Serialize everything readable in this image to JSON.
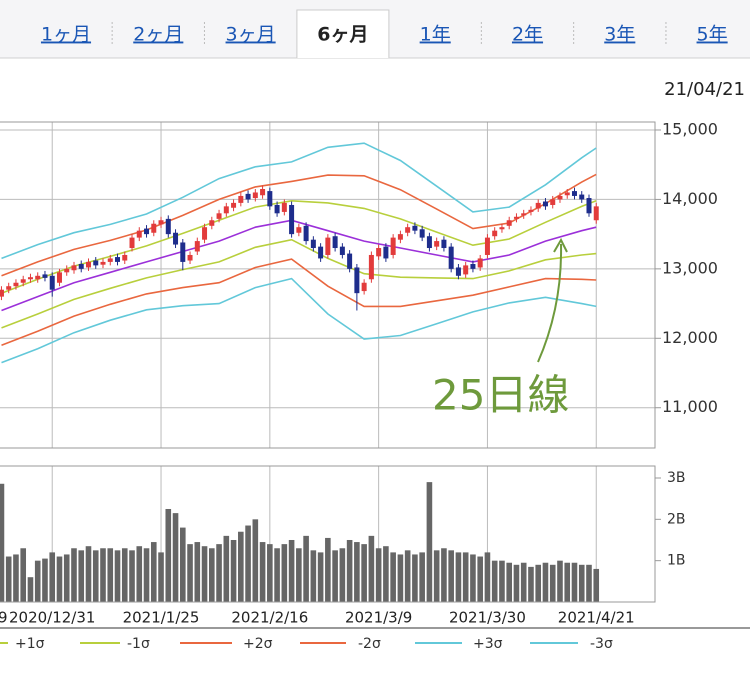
{
  "tabs": {
    "items": [
      "1ヶ月",
      "2ヶ月",
      "3ヶ月",
      "6ヶ月",
      "1年",
      "2年",
      "3年",
      "5年"
    ],
    "active": 3
  },
  "chart_data": {
    "type": "candlestick",
    "date": "21/04/21",
    "annotation": "25日線",
    "xlim": [
      -0.2,
      90.1
    ],
    "xticks": [
      {
        "value": -8,
        "label": "9"
      },
      {
        "value": 7,
        "label": "2020/12/31"
      },
      {
        "value": 22,
        "label": "2021/1/25"
      },
      {
        "value": 37,
        "label": "2021/2/16"
      },
      {
        "value": 52,
        "label": "2021/3/9"
      },
      {
        "value": 67,
        "label": "2021/3/30"
      },
      {
        "value": 82,
        "label": "2021/4/21"
      }
    ],
    "ylim": [
      10420,
      15115
    ],
    "yticks": [
      {
        "value": 11000,
        "label": "11,000"
      },
      {
        "value": 12000,
        "label": "12,000"
      },
      {
        "value": 13000,
        "label": "13,000"
      },
      {
        "value": 14000,
        "label": "14,000"
      },
      {
        "value": 15000,
        "label": "15,000"
      }
    ],
    "grid": true,
    "up_color": "#e23b3b",
    "down_color": "#1e2d8c",
    "open": [
      12600,
      12700,
      12750,
      12800,
      12850,
      12850,
      12920,
      12900,
      12800,
      12950,
      12980,
      13070,
      13020,
      13120,
      13060,
      13100,
      13170,
      13120,
      13300,
      13450,
      13580,
      13520,
      13640,
      13720,
      13520,
      13380,
      13120,
      13250,
      13420,
      13620,
      13720,
      13800,
      13880,
      13950,
      14080,
      14020,
      14060,
      14120,
      13920,
      13820,
      13920,
      13520,
      13620,
      13420,
      13320,
      13200,
      13470,
      13320,
      13220,
      13020,
      12680,
      12850,
      13180,
      13320,
      13200,
      13420,
      13520,
      13620,
      13570,
      13470,
      13320,
      13420,
      13320,
      13020,
      12920,
      13070,
      13020,
      13200,
      13470,
      13570,
      13620,
      13720,
      13770,
      13820,
      13870,
      13970,
      13920,
      14000,
      14060,
      14120,
      14070,
      14020,
      13700
    ],
    "high": [
      12750,
      12800,
      12850,
      12900,
      12930,
      12950,
      12970,
      12950,
      13000,
      13050,
      13100,
      13120,
      13150,
      13170,
      13150,
      13200,
      13220,
      13250,
      13500,
      13600,
      13630,
      13700,
      13750,
      13770,
      13570,
      13430,
      13250,
      13450,
      13650,
      13750,
      13850,
      13950,
      14000,
      14100,
      14130,
      14150,
      14200,
      14170,
      13970,
      14000,
      13970,
      13650,
      13670,
      13470,
      13370,
      13500,
      13520,
      13370,
      13270,
      13070,
      12850,
      13250,
      13350,
      13370,
      13500,
      13550,
      13650,
      13670,
      13620,
      13520,
      13450,
      13470,
      13370,
      13070,
      13100,
      13120,
      13200,
      13500,
      13600,
      13650,
      13750,
      13800,
      13850,
      13900,
      14000,
      14020,
      14050,
      14100,
      14150,
      14170,
      14120,
      14070,
      13950
    ],
    "low": [
      12550,
      12650,
      12700,
      12750,
      12800,
      12800,
      12820,
      12600,
      12750,
      12900,
      12930,
      12950,
      12970,
      13000,
      13010,
      13050,
      13050,
      13070,
      13250,
      13400,
      13450,
      13470,
      13590,
      13450,
      13300,
      12980,
      13070,
      13200,
      13370,
      13570,
      13670,
      13750,
      13830,
      13900,
      13950,
      13970,
      14010,
      13850,
      13750,
      13770,
      13450,
      13470,
      13350,
      13250,
      13100,
      13150,
      13250,
      13150,
      12950,
      12400,
      12630,
      12800,
      13130,
      13100,
      13150,
      13370,
      13470,
      13500,
      13400,
      13250,
      13270,
      13250,
      12950,
      12850,
      12870,
      12950,
      12970,
      13150,
      13420,
      13520,
      13570,
      13670,
      13720,
      13770,
      13820,
      13850,
      13870,
      13950,
      14010,
      14000,
      13950,
      13750,
      13650
    ],
    "close": [
      12700,
      12750,
      12800,
      12850,
      12880,
      12900,
      12870,
      12700,
      12950,
      13000,
      13050,
      13000,
      13100,
      13050,
      13100,
      13150,
      13100,
      13200,
      13450,
      13550,
      13500,
      13650,
      13700,
      13500,
      13350,
      13100,
      13200,
      13400,
      13600,
      13700,
      13800,
      13900,
      13950,
      14050,
      14000,
      14100,
      14150,
      13900,
      13800,
      13950,
      13500,
      13600,
      13400,
      13300,
      13150,
      13450,
      13300,
      13200,
      13000,
      12650,
      12800,
      13200,
      13300,
      13150,
      13450,
      13500,
      13600,
      13550,
      13450,
      13300,
      13400,
      13300,
      13000,
      12900,
      13050,
      13000,
      13150,
      13450,
      13550,
      13600,
      13700,
      13750,
      13800,
      13850,
      13950,
      13900,
      14000,
      14050,
      14100,
      14050,
      14000,
      13800,
      13900
    ],
    "band_x": [
      0,
      5,
      10,
      15,
      20,
      25,
      30,
      35,
      40,
      45,
      50,
      55,
      60,
      65,
      70,
      75,
      80,
      82
    ],
    "series": [
      {
        "color": "#9b30d9",
        "values": [
          12400,
          12600,
          12800,
          12950,
          13100,
          13250,
          13400,
          13600,
          13700,
          13550,
          13400,
          13300,
          13200,
          13100,
          13200,
          13400,
          13550,
          13600
        ]
      },
      {
        "name": "+1σ",
        "color": "#b8cf3c",
        "values": [
          12650,
          12850,
          13040,
          13180,
          13330,
          13510,
          13700,
          13890,
          13980,
          13950,
          13870,
          13720,
          13530,
          13340,
          13430,
          13670,
          13900,
          13980
        ]
      },
      {
        "name": "-1σ",
        "color": "#b8cf3c",
        "values": [
          12150,
          12350,
          12560,
          12720,
          12870,
          12990,
          13100,
          13310,
          13420,
          13150,
          12930,
          12880,
          12870,
          12860,
          12970,
          13130,
          13200,
          13220
        ]
      },
      {
        "name": "+2σ",
        "color": "#e9673f",
        "values": [
          12900,
          13100,
          13280,
          13410,
          13560,
          13770,
          14000,
          14180,
          14260,
          14350,
          14340,
          14140,
          13860,
          13580,
          13660,
          13940,
          14250,
          14360
        ]
      },
      {
        "name": "-2σ",
        "color": "#e9673f",
        "values": [
          11900,
          12100,
          12320,
          12490,
          12640,
          12730,
          12800,
          13020,
          13140,
          12750,
          12460,
          12460,
          12540,
          12620,
          12740,
          12860,
          12850,
          12840
        ]
      },
      {
        "name": "+3σ",
        "color": "#62c8d9",
        "values": [
          13150,
          13350,
          13520,
          13640,
          13790,
          14030,
          14300,
          14470,
          14540,
          14750,
          14810,
          14560,
          14190,
          13820,
          13890,
          14210,
          14600,
          14740
        ]
      },
      {
        "name": "-3σ",
        "color": "#62c8d9",
        "values": [
          11650,
          11850,
          12080,
          12260,
          12410,
          12470,
          12500,
          12730,
          12860,
          12350,
          11990,
          12040,
          12210,
          12380,
          12510,
          12590,
          12500,
          12460
        ]
      }
    ],
    "volume": {
      "color": "#666666",
      "ylim": [
        0,
        3.29
      ],
      "yticks": [
        {
          "value": 1,
          "label": "1B"
        },
        {
          "value": 2,
          "label": "2B"
        },
        {
          "value": 3,
          "label": "3B"
        }
      ],
      "values": [
        2.86,
        1.1,
        1.15,
        1.3,
        0.6,
        1.0,
        1.05,
        1.2,
        1.1,
        1.15,
        1.3,
        1.25,
        1.35,
        1.25,
        1.3,
        1.3,
        1.25,
        1.3,
        1.25,
        1.35,
        1.3,
        1.45,
        1.2,
        2.25,
        2.15,
        1.8,
        1.4,
        1.45,
        1.35,
        1.3,
        1.4,
        1.6,
        1.5,
        1.7,
        1.85,
        2.0,
        1.45,
        1.4,
        1.3,
        1.4,
        1.5,
        1.3,
        1.6,
        1.25,
        1.2,
        1.55,
        1.25,
        1.3,
        1.5,
        1.45,
        1.4,
        1.6,
        1.3,
        1.35,
        1.2,
        1.15,
        1.25,
        1.15,
        1.2,
        2.9,
        1.25,
        1.3,
        1.25,
        1.2,
        1.2,
        1.15,
        1.1,
        1.2,
        1.0,
        1.0,
        0.95,
        0.9,
        0.95,
        0.85,
        0.9,
        0.95,
        0.9,
        1.0,
        0.95,
        0.95,
        0.9,
        0.9,
        0.8
      ]
    }
  }
}
